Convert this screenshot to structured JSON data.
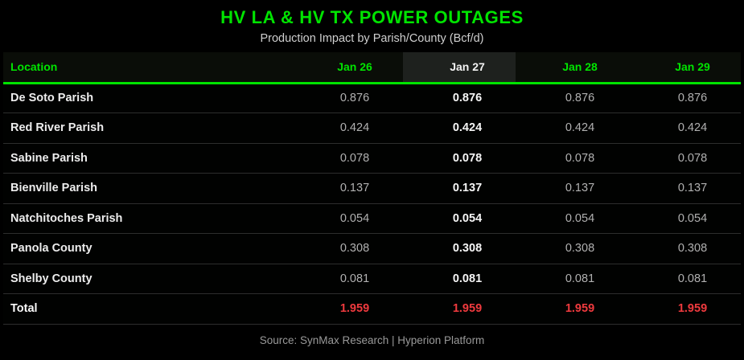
{
  "title": "HV LA & HV TX POWER OUTAGES",
  "subtitle": "Production Impact by Parish/County (Bcf/d)",
  "source": "Source: SynMax Research | Hyperion Platform",
  "colors": {
    "accent_green": "#00e400",
    "highlight_header_bg": "#1e211e",
    "header_row_bg": "#0a0d08",
    "value_gray": "#b1b1b1",
    "value_highlight_white": "#f5f5f5",
    "total_red": "#ef3a3e",
    "row_separator": "#2d2d2d",
    "background": "#000000",
    "source_gray": "#999999"
  },
  "table": {
    "columns": [
      "Location",
      "Jan 26",
      "Jan 27",
      "Jan 28",
      "Jan 29"
    ],
    "highlight_column_index": 2,
    "highlight_column_label": "Jan 27",
    "rows": [
      {
        "location": "De Soto Parish",
        "values": [
          "0.876",
          "0.876",
          "0.876",
          "0.876"
        ],
        "is_total": false
      },
      {
        "location": "Red River Parish",
        "values": [
          "0.424",
          "0.424",
          "0.424",
          "0.424"
        ],
        "is_total": false
      },
      {
        "location": "Sabine Parish",
        "values": [
          "0.078",
          "0.078",
          "0.078",
          "0.078"
        ],
        "is_total": false
      },
      {
        "location": "Bienville Parish",
        "values": [
          "0.137",
          "0.137",
          "0.137",
          "0.137"
        ],
        "is_total": false
      },
      {
        "location": "Natchitoches Parish",
        "values": [
          "0.054",
          "0.054",
          "0.054",
          "0.054"
        ],
        "is_total": false
      },
      {
        "location": "Panola County",
        "values": [
          "0.308",
          "0.308",
          "0.308",
          "0.308"
        ],
        "is_total": false
      },
      {
        "location": "Shelby County",
        "values": [
          "0.081",
          "0.081",
          "0.081",
          "0.081"
        ],
        "is_total": false
      },
      {
        "location": "Total",
        "values": [
          "1.959",
          "1.959",
          "1.959",
          "1.959"
        ],
        "is_total": true
      }
    ]
  },
  "chart_data": {
    "type": "table",
    "title": "HV LA & HV TX POWER OUTAGES",
    "subtitle": "Production Impact by Parish/County (Bcf/d)",
    "units": "Bcf/d",
    "columns": [
      "Location",
      "Jan 26",
      "Jan 27",
      "Jan 28",
      "Jan 29"
    ],
    "highlighted_column": "Jan 27",
    "rows": [
      {
        "location": "De Soto Parish",
        "values": [
          0.876,
          0.876,
          0.876,
          0.876
        ]
      },
      {
        "location": "Red River Parish",
        "values": [
          0.424,
          0.424,
          0.424,
          0.424
        ]
      },
      {
        "location": "Sabine Parish",
        "values": [
          0.078,
          0.078,
          0.078,
          0.078
        ]
      },
      {
        "location": "Bienville Parish",
        "values": [
          0.137,
          0.137,
          0.137,
          0.137
        ]
      },
      {
        "location": "Natchitoches Parish",
        "values": [
          0.054,
          0.054,
          0.054,
          0.054
        ]
      },
      {
        "location": "Panola County",
        "values": [
          0.308,
          0.308,
          0.308,
          0.308
        ]
      },
      {
        "location": "Shelby County",
        "values": [
          0.081,
          0.081,
          0.081,
          0.081
        ]
      },
      {
        "location": "Total",
        "values": [
          1.959,
          1.959,
          1.959,
          1.959
        ]
      }
    ],
    "source": "Source: SynMax Research | Hyperion Platform"
  }
}
